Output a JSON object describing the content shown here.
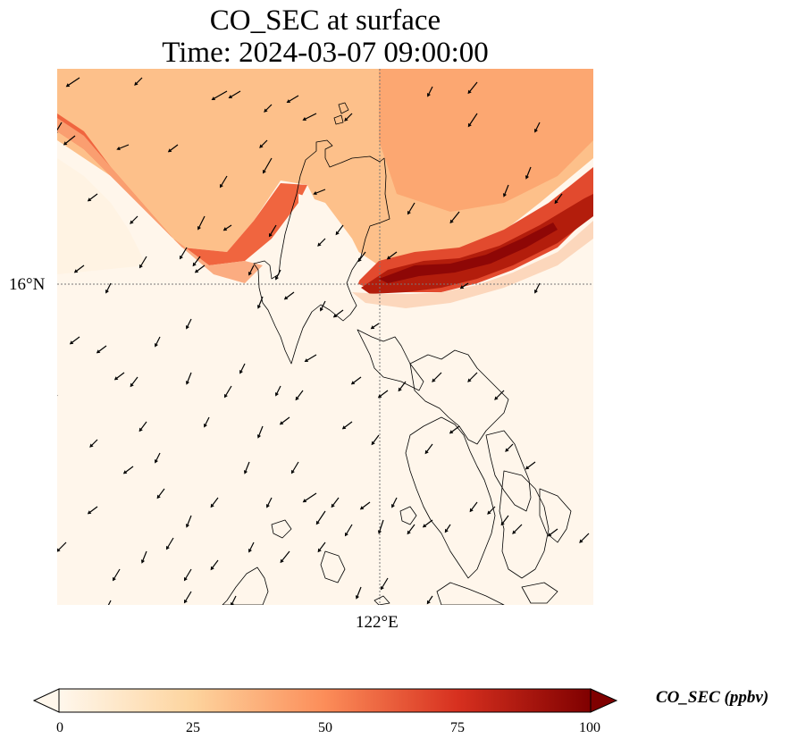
{
  "title_line1": "CO_SEC at surface",
  "title_line2": "Time: 2024-03-07 09:00:00",
  "gridlines": {
    "lat_label": "16°N",
    "lon_label": "122°E"
  },
  "colorbar": {
    "label": "CO_SEC (ppbv)",
    "colormap": "OrRd",
    "vmin": 0,
    "vmax": 100,
    "extend": "both",
    "ticks": [
      "0",
      "25",
      "50",
      "75",
      "100"
    ],
    "colors": [
      "#fff7ec",
      "#fdd49e",
      "#fc8d59",
      "#d7301f",
      "#7f0000"
    ]
  },
  "map": {
    "region": "Northern Philippines (Luzon)",
    "features": [
      "coastline",
      "wind vectors",
      "CO_SEC concentration field"
    ],
    "plume_description": "High CO_SEC band over the sea north of Luzon, peaking ~90-100 ppbv east of 122°E near 16.5°N; land and south mostly near 0"
  }
}
